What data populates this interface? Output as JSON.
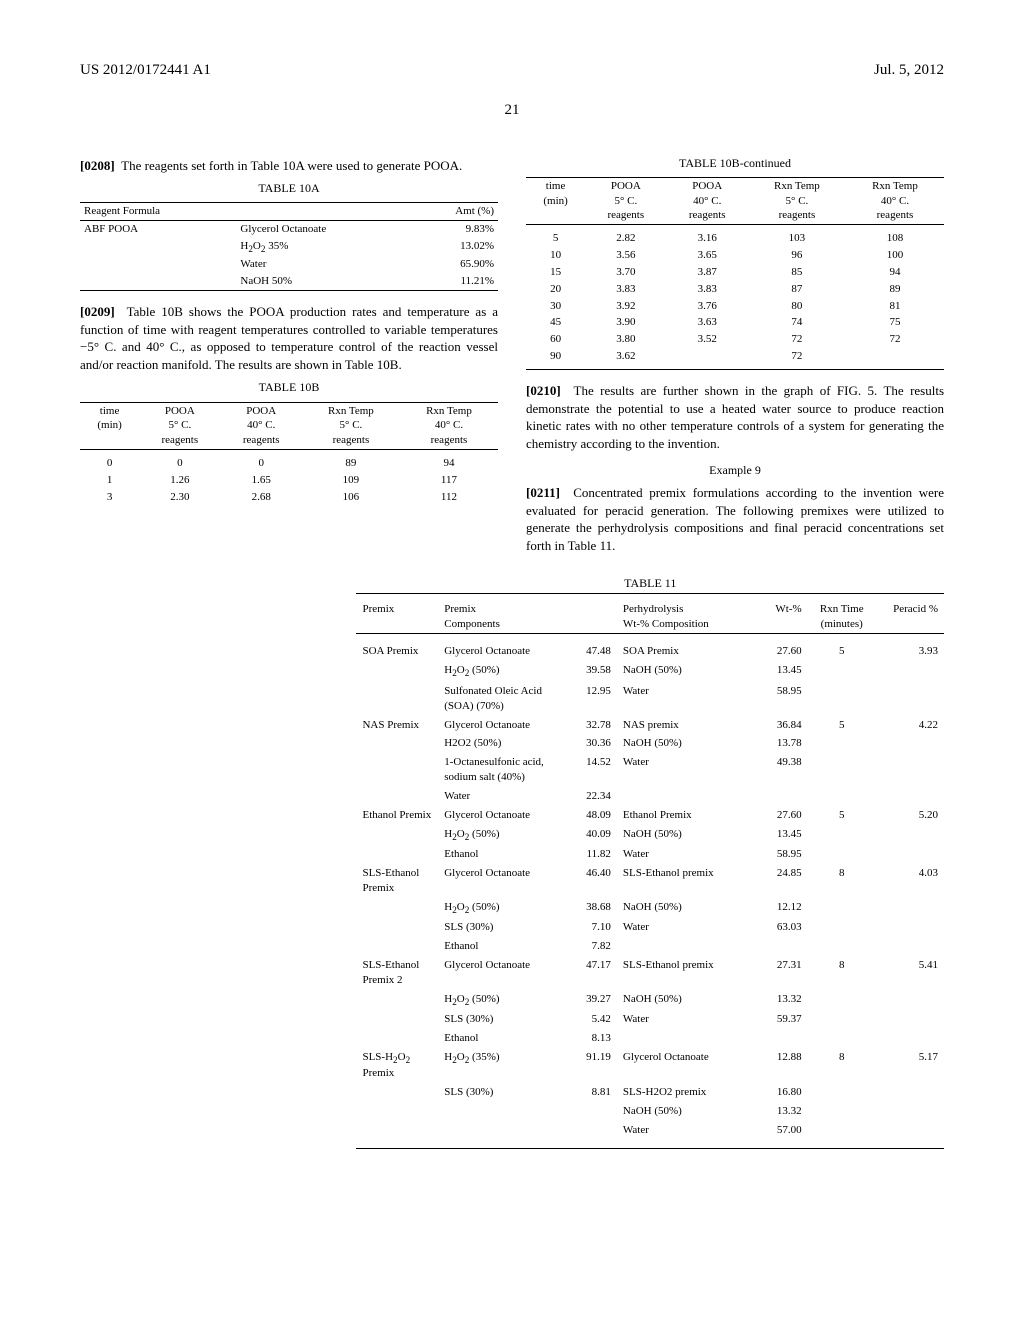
{
  "header": {
    "pub_num": "US 2012/0172441 A1",
    "pub_date": "Jul. 5, 2012",
    "page_num": "21"
  },
  "para208": {
    "num": "[0208]",
    "text": "The reagents set forth in Table 10A were used to generate POOA."
  },
  "table10A": {
    "title": "TABLE 10A",
    "col1": "Reagent Formula",
    "col3": "Amt (%)",
    "label": "ABF POOA",
    "rows": [
      {
        "name": "Glycerol Octanoate",
        "amt": "9.83%"
      },
      {
        "name_html": "H<sub>2</sub>O<sub>2</sub> 35%",
        "name": "H2O2 35%",
        "amt": "13.02%"
      },
      {
        "name": "Water",
        "amt": "65.90%"
      },
      {
        "name": "NaOH 50%",
        "amt": "11.21%"
      }
    ]
  },
  "para209": {
    "num": "[0209]",
    "text": "Table 10B shows the POOA production rates and temperature as a function of time with reagent temperatures controlled to variable temperatures −5° C. and 40° C., as opposed to temperature control of the reaction vessel and/or reaction manifold. The results are shown in Table 10B."
  },
  "table10B": {
    "title_left": "TABLE 10B",
    "title_right": "TABLE 10B-continued",
    "headers": {
      "time": "time (min)",
      "c1": "POOA 5° C. reagents",
      "c2": "POOA 40° C. reagents",
      "c3": "Rxn Temp 5° C. reagents",
      "c4": "Rxn Temp 40° C. reagents"
    },
    "rows_left": [
      {
        "t": "0",
        "a": "0",
        "b": "0",
        "c": "89",
        "d": "94"
      },
      {
        "t": "1",
        "a": "1.26",
        "b": "1.65",
        "c": "109",
        "d": "117"
      },
      {
        "t": "3",
        "a": "2.30",
        "b": "2.68",
        "c": "106",
        "d": "112"
      }
    ],
    "rows_right": [
      {
        "t": "5",
        "a": "2.82",
        "b": "3.16",
        "c": "103",
        "d": "108"
      },
      {
        "t": "10",
        "a": "3.56",
        "b": "3.65",
        "c": "96",
        "d": "100"
      },
      {
        "t": "15",
        "a": "3.70",
        "b": "3.87",
        "c": "85",
        "d": "94"
      },
      {
        "t": "20",
        "a": "3.83",
        "b": "3.83",
        "c": "87",
        "d": "89"
      },
      {
        "t": "30",
        "a": "3.92",
        "b": "3.76",
        "c": "80",
        "d": "81"
      },
      {
        "t": "45",
        "a": "3.90",
        "b": "3.63",
        "c": "74",
        "d": "75"
      },
      {
        "t": "60",
        "a": "3.80",
        "b": "3.52",
        "c": "72",
        "d": "72"
      },
      {
        "t": "90",
        "a": "3.62",
        "b": "",
        "c": "72",
        "d": ""
      }
    ]
  },
  "para210": {
    "num": "[0210]",
    "text": "The results are further shown in the graph of FIG. 5. The results demonstrate the potential to use a heated water source to produce reaction kinetic rates with no other temperature controls of a system for generating the chemistry according to the invention."
  },
  "example9": "Example 9",
  "para211": {
    "num": "[0211]",
    "text": "Concentrated premix formulations according to the invention were evaluated for peracid generation. The following premixes were utilized to generate the perhydrolysis compositions and final peracid concentrations set forth in Table 11."
  },
  "table11": {
    "title": "TABLE 11",
    "headers": {
      "premix": "Premix",
      "comp": "Premix Components",
      "perh": "Perhydrolysis Wt-% Composition",
      "wt": "Wt-%",
      "rxn": "Rxn Time (minutes)",
      "per": "Peracid %"
    },
    "groups": [
      {
        "premix": "SOA Premix",
        "rows": [
          {
            "comp": "Glycerol Octanoate",
            "cval": "47.48",
            "perh": "SOA Premix",
            "wt": "27.60",
            "rxn": "5",
            "per": "3.93"
          },
          {
            "comp_html": "H<sub>2</sub>O<sub>2</sub> (50%)",
            "comp": "H2O2 (50%)",
            "cval": "39.58",
            "perh": "NaOH (50%)",
            "wt": "13.45"
          },
          {
            "comp": "Sulfonated Oleic Acid (SOA) (70%)",
            "cval": "12.95",
            "perh": "Water",
            "wt": "58.95"
          }
        ]
      },
      {
        "premix": "NAS Premix",
        "rows": [
          {
            "comp": "Glycerol Octanoate",
            "cval": "32.78",
            "perh": "NAS premix",
            "wt": "36.84",
            "rxn": "5",
            "per": "4.22"
          },
          {
            "comp": "H2O2 (50%)",
            "cval": "30.36",
            "perh": "NaOH (50%)",
            "wt": "13.78"
          },
          {
            "comp": "1-Octanesulfonic acid, sodium salt (40%)",
            "cval": "14.52",
            "perh": "Water",
            "wt": "49.38"
          },
          {
            "comp": "Water",
            "cval": "22.34"
          }
        ]
      },
      {
        "premix": "Ethanol Premix",
        "rows": [
          {
            "comp": "Glycerol Octanoate",
            "cval": "48.09",
            "perh": "Ethanol Premix",
            "wt": "27.60",
            "rxn": "5",
            "per": "5.20"
          },
          {
            "comp_html": "H<sub>2</sub>O<sub>2</sub> (50%)",
            "comp": "H2O2 (50%)",
            "cval": "40.09",
            "perh": "NaOH (50%)",
            "wt": "13.45"
          },
          {
            "comp": "Ethanol",
            "cval": "11.82",
            "perh": "Water",
            "wt": "58.95"
          }
        ]
      },
      {
        "premix": "SLS-Ethanol Premix",
        "rows": [
          {
            "comp": "Glycerol Octanoate",
            "cval": "46.40",
            "perh": "SLS-Ethanol premix",
            "wt": "24.85",
            "rxn": "8",
            "per": "4.03"
          },
          {
            "comp_html": "H<sub>2</sub>O<sub>2</sub> (50%)",
            "comp": "H2O2 (50%)",
            "cval": "38.68",
            "perh": "NaOH (50%)",
            "wt": "12.12"
          },
          {
            "comp": "SLS (30%)",
            "cval": "7.10",
            "perh": "Water",
            "wt": "63.03"
          },
          {
            "comp": "Ethanol",
            "cval": "7.82"
          }
        ]
      },
      {
        "premix": "SLS-Ethanol Premix 2",
        "rows": [
          {
            "comp": "Glycerol Octanoate",
            "cval": "47.17",
            "perh": "SLS-Ethanol premix",
            "wt": "27.31",
            "rxn": "8",
            "per": "5.41"
          },
          {
            "comp_html": "H<sub>2</sub>O<sub>2</sub> (50%)",
            "comp": "H2O2 (50%)",
            "cval": "39.27",
            "perh": "NaOH (50%)",
            "wt": "13.32"
          },
          {
            "comp": "SLS (30%)",
            "cval": "5.42",
            "perh": "Water",
            "wt": "59.37"
          },
          {
            "comp": "Ethanol",
            "cval": "8.13"
          }
        ]
      },
      {
        "premix_html": "SLS-H<sub>2</sub>O<sub>2</sub> Premix",
        "premix": "SLS-H2O2 Premix",
        "rows": [
          {
            "comp_html": "H<sub>2</sub>O<sub>2</sub> (35%)",
            "comp": "H2O2 (35%)",
            "cval": "91.19",
            "perh": "Glycerol Octanoate",
            "wt": "12.88",
            "rxn": "8",
            "per": "5.17"
          },
          {
            "comp": "SLS (30%)",
            "cval": "8.81",
            "perh": "SLS-H2O2 premix",
            "wt": "16.80"
          },
          {
            "perh": "NaOH (50%)",
            "wt": "13.32"
          },
          {
            "perh": "Water",
            "wt": "57.00"
          }
        ]
      }
    ]
  }
}
